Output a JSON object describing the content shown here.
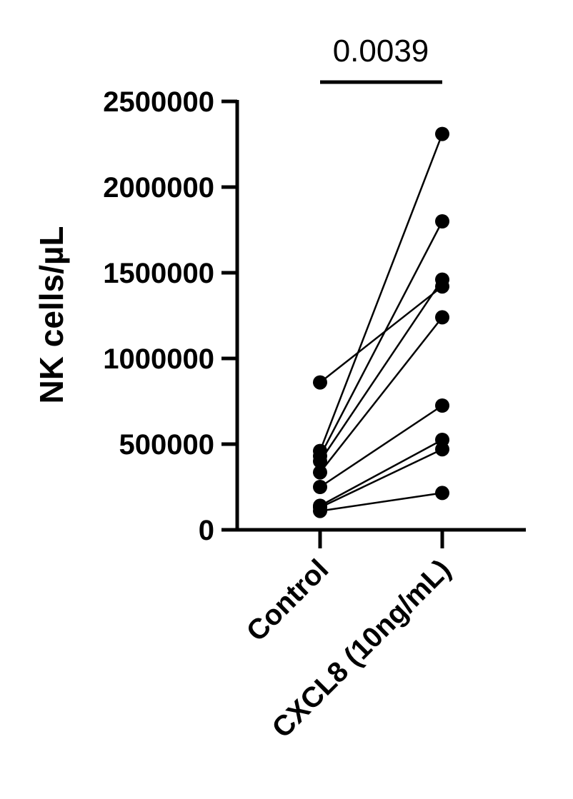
{
  "chart_data": {
    "type": "scatter",
    "subtype": "paired before-after",
    "ylabel": "NK cells/µL",
    "xlabel": "",
    "categories": [
      "Control",
      "CXCL8 (10ng/mL)"
    ],
    "ylim": [
      0,
      2500000
    ],
    "yticks": [
      0,
      500000,
      1000000,
      1500000,
      2000000,
      2500000
    ],
    "ytick_labels": [
      "0",
      "500000",
      "1000000",
      "1500000",
      "2000000",
      "2500000"
    ],
    "significance": {
      "label": "0.0039",
      "between": [
        "Control",
        "CXCL8 (10ng/mL)"
      ]
    },
    "pairs": [
      [
        860000,
        1420000
      ],
      [
        460000,
        2310000
      ],
      [
        430000,
        1800000
      ],
      [
        400000,
        1460000
      ],
      [
        335000,
        1240000
      ],
      [
        250000,
        725000
      ],
      [
        140000,
        525000
      ],
      [
        130000,
        470000
      ],
      [
        110000,
        215000
      ]
    ],
    "grid": false,
    "legend": "none"
  }
}
